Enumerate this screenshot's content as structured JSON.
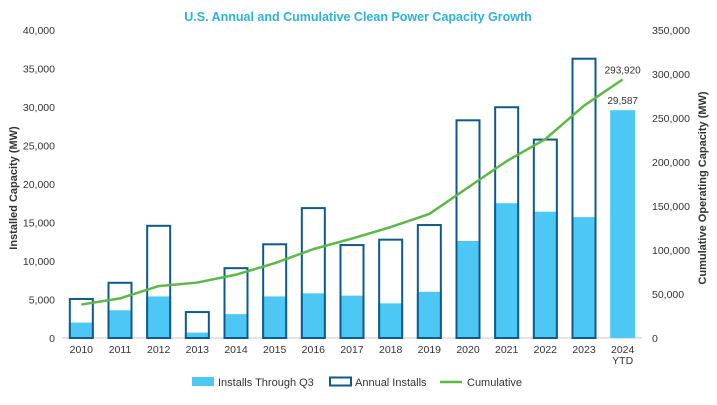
{
  "chart_data": {
    "type": "bar",
    "title": "U.S. Annual and Cumulative Clean Power Capacity Growth",
    "categories": [
      [
        "2010"
      ],
      [
        "2011"
      ],
      [
        "2012"
      ],
      [
        "2013"
      ],
      [
        "2014"
      ],
      [
        "2015"
      ],
      [
        "2016"
      ],
      [
        "2017"
      ],
      [
        "2018"
      ],
      [
        "2019"
      ],
      [
        "2020"
      ],
      [
        "2021"
      ],
      [
        "2022"
      ],
      [
        "2023"
      ],
      [
        "2024",
        "YTD"
      ]
    ],
    "ylabel": "Installed Capacity (MW)",
    "y2label": "Cumulative Operating Capacity (MW)",
    "ylim": [
      0,
      40000
    ],
    "y2lim": [
      0,
      350000
    ],
    "yticks": [
      0,
      5000,
      10000,
      15000,
      20000,
      25000,
      30000,
      35000,
      40000
    ],
    "ytick_labels": [
      "0",
      "5,000",
      "10,000",
      "15,000",
      "20,000",
      "25,000",
      "30,000",
      "35,000",
      "40,000"
    ],
    "y2ticks": [
      0,
      50000,
      100000,
      150000,
      200000,
      250000,
      300000,
      350000
    ],
    "y2tick_labels": [
      "0",
      "50,000",
      "100,000",
      "150,000",
      "200,000",
      "250,000",
      "300,000",
      "350,000"
    ],
    "series": [
      {
        "name": "Installs Through Q3",
        "type": "bar",
        "axis": "left",
        "color": "#4dc8f4",
        "values": [
          2000,
          3600,
          5400,
          700,
          3100,
          5400,
          5800,
          5500,
          4500,
          6000,
          12600,
          17500,
          16400,
          15700,
          29587
        ]
      },
      {
        "name": "Annual Installs",
        "type": "bar-outline",
        "axis": "left",
        "color": "#0f5a8c",
        "values": [
          5200,
          7300,
          14700,
          3500,
          9200,
          12300,
          17000,
          12200,
          12900,
          14800,
          28400,
          30100,
          25900,
          36400,
          null
        ]
      },
      {
        "name": "Cumulative",
        "type": "line",
        "axis": "right",
        "color": "#5cb946",
        "values": [
          38000,
          45000,
          59000,
          63000,
          72000,
          85000,
          101000,
          113000,
          126000,
          141000,
          171000,
          201000,
          226000,
          264000,
          293920
        ]
      }
    ],
    "annotations": [
      {
        "series": "Cumulative",
        "index": 14,
        "text": "293,920"
      },
      {
        "series": "Installs Through Q3",
        "index": 14,
        "text": "29,587"
      }
    ],
    "legend": "bottom",
    "grid": false
  },
  "colors": {
    "title": "#2ab3df",
    "axis": "#c8c8c8"
  }
}
